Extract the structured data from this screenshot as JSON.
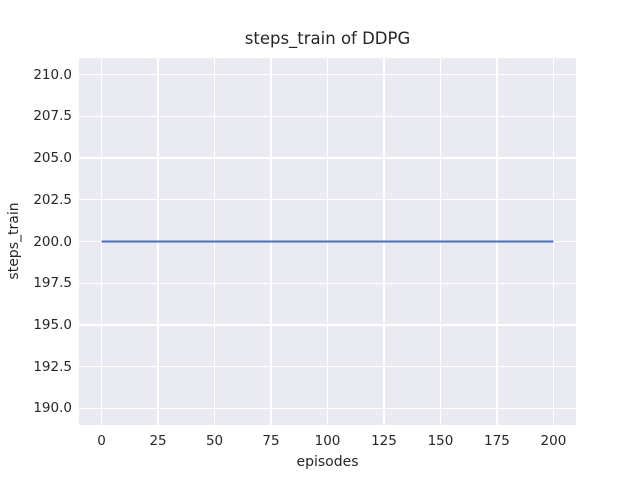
{
  "chart_data": {
    "type": "line",
    "title": "steps_train of DDPG",
    "xlabel": "episodes",
    "ylabel": "steps_train",
    "xlim": [
      -10,
      210
    ],
    "ylim": [
      189,
      211
    ],
    "grid": true,
    "legend": "none",
    "xticks": {
      "values": [
        0,
        25,
        50,
        75,
        100,
        125,
        150,
        175,
        200
      ],
      "labels": [
        "0",
        "25",
        "50",
        "75",
        "100",
        "125",
        "150",
        "175",
        "200"
      ]
    },
    "yticks": {
      "values": [
        190.0,
        192.5,
        195.0,
        197.5,
        200.0,
        202.5,
        205.0,
        207.5,
        210.0
      ],
      "labels": [
        "190.0",
        "192.5",
        "195.0",
        "197.5",
        "200.0",
        "202.5",
        "205.0",
        "207.5",
        "210.0"
      ]
    },
    "series": [
      {
        "name": "steps_train",
        "x": [
          0,
          200
        ],
        "y": [
          200,
          200
        ],
        "description": "constant value of 200 steps per episode across episodes 0 to 200"
      }
    ],
    "colors": {
      "figure_background": "#ffffff",
      "plot_background": "#eaeaf2",
      "grid": "#ffffff",
      "line": "#4c72b0",
      "text": "#262626"
    }
  }
}
